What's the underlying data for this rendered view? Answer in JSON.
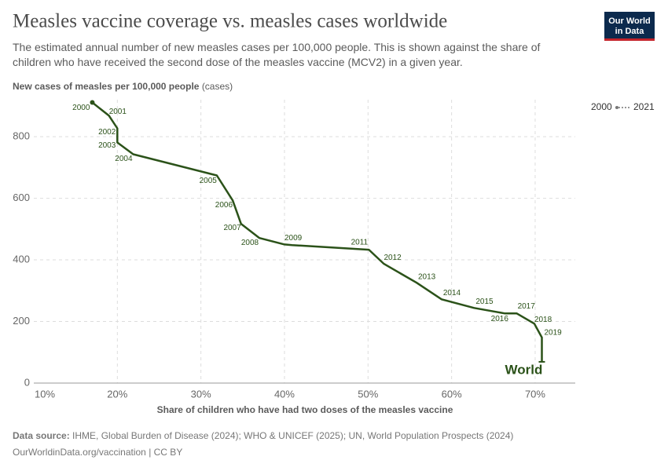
{
  "chart_data": {
    "type": "line",
    "title": "Measles vaccine coverage vs. measles cases worldwide",
    "subtitle": "The estimated annual number of new measles cases per 100,000 people. This is shown against the share of children who have received the second dose of the measles vaccine (MCV2) in a given year.",
    "y_label": "New cases of measles per 100,000 people",
    "y_unit": "(cases)",
    "x_label": "Share of children who have had two doses of the measles vaccine",
    "x": [
      17.0,
      19.0,
      20.0,
      20.0,
      21.9,
      31.9,
      33.8,
      34.8,
      37.0,
      40.0,
      40.9,
      50.1,
      51.9,
      55.8,
      58.8,
      62.7,
      66.4,
      67.8,
      69.9,
      70.8,
      70.8,
      70.8
    ],
    "series": [
      {
        "name": "World",
        "color": "#2b5219",
        "values": [
          911,
          868,
          827,
          781,
          743,
          674,
          593,
          517,
          471,
          450,
          448,
          433,
          387,
          326,
          272,
          244,
          226,
          226,
          193,
          148,
          97,
          69
        ],
        "point_labels": [
          "2000",
          "2001",
          "2002",
          "2003",
          "2004",
          "2005",
          "2006",
          "2007",
          "2008",
          "2009",
          null,
          "2011",
          "2012",
          "2013",
          "2014",
          "2015",
          "2016",
          "2017",
          "2018",
          "2019",
          null,
          null
        ]
      }
    ],
    "xlim": [
      10,
      74.8
    ],
    "ylim": [
      0,
      920
    ],
    "xticks": [
      {
        "value": 10,
        "label": "10%"
      },
      {
        "value": 20,
        "label": "20%"
      },
      {
        "value": 30,
        "label": "30%"
      },
      {
        "value": 40,
        "label": "40%"
      },
      {
        "value": 50,
        "label": "50%"
      },
      {
        "value": 60,
        "label": "60%"
      },
      {
        "value": 70,
        "label": "70%"
      }
    ],
    "yticks": [
      0,
      200,
      400,
      600,
      800
    ],
    "grid": true,
    "legend": {
      "start": "2000",
      "end": "2021"
    },
    "logo": [
      "Our World",
      "in Data"
    ],
    "source_label": "Data source:",
    "source": "IHME, Global Burden of Disease (2024); WHO & UNICEF (2025); UN, World Population Prospects (2024)",
    "footer": "OurWorldinData.org/vaccination | CC BY"
  }
}
